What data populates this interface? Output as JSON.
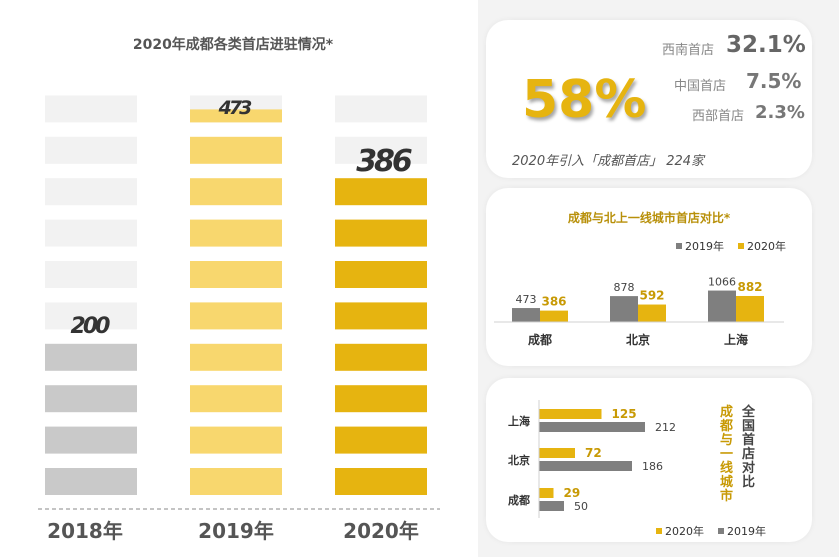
{
  "left_panel": {
    "title": "2020年成都各类首店进驻情况*",
    "columns": [
      {
        "year": "2018年",
        "value": 200,
        "filled": 4
      },
      {
        "year": "2019年",
        "value": 473,
        "filled": 10
      },
      {
        "year": "2020年",
        "value": 386,
        "filled": 8
      }
    ]
  },
  "summary": {
    "big_percent": "58%",
    "stats": [
      {
        "label": "西南首店",
        "value": "32.1%"
      },
      {
        "label": "中国首店",
        "value": "7.5%"
      },
      {
        "label": "西部首店",
        "value": "2.3%"
      }
    ],
    "caption": "2020年引入「成都首店」 224家"
  },
  "chart_data": [
    {
      "type": "bar",
      "title": "2020年成都各类首店进驻情况*",
      "categories": [
        "2018年",
        "2019年",
        "2020年"
      ],
      "values": [
        200,
        473,
        386
      ]
    },
    {
      "type": "bar",
      "title": "成都与北上一线城市首店对比*",
      "categories": [
        "成都",
        "北京",
        "上海"
      ],
      "series": [
        {
          "name": "2019年",
          "values": [
            473,
            878,
            1066
          ],
          "color": "#7f7f7f"
        },
        {
          "name": "2020年",
          "values": [
            386,
            592,
            882
          ],
          "color": "#e6b410"
        }
      ],
      "legend": "top-right"
    },
    {
      "type": "bar",
      "orientation": "horizontal",
      "title_part1": "成都与一线城市",
      "title_part2": "全国首店对比",
      "categories": [
        "上海",
        "北京",
        "成都"
      ],
      "series": [
        {
          "name": "2020年",
          "values": [
            125,
            72,
            29
          ],
          "color": "#e6b410"
        },
        {
          "name": "2019年",
          "values": [
            212,
            186,
            50
          ],
          "color": "#7f7f7f"
        }
      ],
      "legend": "bottom-right"
    }
  ]
}
